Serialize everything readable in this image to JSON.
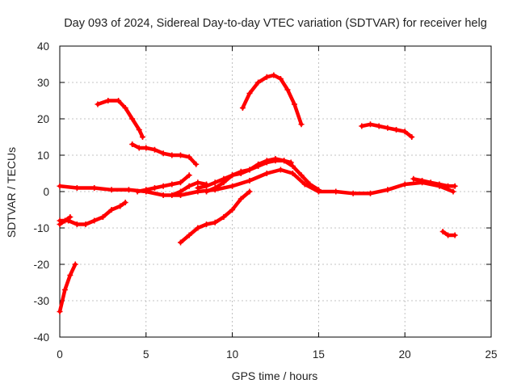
{
  "chart_data": {
    "type": "line",
    "title": "Day 093 of 2024, Sidereal Day-to-day VTEC variation (SDTVAR) for receiver helg",
    "xlabel": "GPS time / hours",
    "ylabel": "SDTVAR / TECUs",
    "xlim": [
      0,
      25
    ],
    "ylim": [
      -40,
      40
    ],
    "xticks": [
      0,
      5,
      10,
      15,
      20,
      25
    ],
    "yticks": [
      -40,
      -30,
      -20,
      -10,
      0,
      10,
      20,
      30,
      40
    ],
    "grid": true,
    "legend": "none",
    "color": "#ff0000",
    "series": [
      {
        "name": "arc-1",
        "x": [
          0.0,
          0.3,
          0.6,
          0.9
        ],
        "y": [
          -33,
          -27,
          -23,
          -20
        ]
      },
      {
        "name": "arc-2",
        "x": [
          0.0,
          0.5,
          1.0,
          1.5,
          2.0,
          2.5,
          3.0,
          3.5,
          3.8
        ],
        "y": [
          -8,
          -8,
          -9,
          -9,
          -8,
          -7,
          -5,
          -4,
          -3
        ]
      },
      {
        "name": "arc-3",
        "x": [
          0.0,
          0.3,
          0.6
        ],
        "y": [
          -9,
          -8,
          -7
        ]
      },
      {
        "name": "arc-4",
        "x": [
          0.0,
          1.0,
          2.0,
          3.0,
          4.0,
          5.0,
          6.0,
          7.0,
          8.0,
          9.0,
          10.0,
          11.0,
          12.0,
          12.8,
          13.5,
          14.2,
          15.0,
          16.0,
          17.0,
          18.0,
          19.0,
          20.0,
          21.0,
          22.0,
          22.8
        ],
        "y": [
          1.5,
          1.0,
          1.0,
          0.5,
          0.5,
          0,
          -1,
          -1,
          0,
          0.5,
          1.5,
          3,
          5,
          6,
          5,
          2,
          0,
          0,
          -0.5,
          -0.5,
          0.5,
          2,
          2.5,
          1.5,
          0
        ]
      },
      {
        "name": "arc-5",
        "x": [
          2.2,
          2.8,
          3.4,
          3.8,
          4.2,
          4.6,
          4.8
        ],
        "y": [
          24,
          25,
          25,
          23,
          20,
          17,
          15
        ]
      },
      {
        "name": "arc-6",
        "x": [
          4.2,
          4.6,
          5.0,
          5.5,
          6.0,
          6.5,
          7.0,
          7.5,
          7.9
        ],
        "y": [
          13,
          12,
          12,
          11.5,
          10.5,
          10,
          10,
          9.5,
          7.5
        ]
      },
      {
        "name": "arc-7",
        "x": [
          4.5,
          5.0,
          5.5,
          6.0,
          6.5,
          7.0,
          7.5
        ],
        "y": [
          0,
          0.5,
          1,
          1.5,
          2,
          2.5,
          4.5
        ]
      },
      {
        "name": "arc-8",
        "x": [
          7.0,
          7.5,
          8.0,
          8.5,
          9.0,
          9.5,
          10.0,
          10.5,
          11.0
        ],
        "y": [
          -14,
          -12,
          -10,
          -9,
          -8.5,
          -7,
          -5,
          -2,
          0
        ]
      },
      {
        "name": "arc-9",
        "x": [
          6.5,
          7.0,
          7.5,
          8.0,
          8.5
        ],
        "y": [
          -1,
          0,
          1.5,
          2.5,
          2
        ]
      },
      {
        "name": "arc-10",
        "x": [
          8.0,
          8.5,
          9.0,
          9.5,
          10.0,
          10.5,
          11.0,
          11.5,
          12.0,
          12.5,
          13.0,
          13.5,
          14.0,
          14.5,
          15.0
        ],
        "y": [
          1,
          1.5,
          2.5,
          3.5,
          4.5,
          5,
          6,
          7.5,
          8.5,
          9,
          8.5,
          7,
          4.5,
          2,
          0.5
        ]
      },
      {
        "name": "arc-11",
        "x": [
          8.5,
          9.0,
          9.5,
          10.0,
          10.5,
          11.0,
          11.5,
          12.0,
          12.5,
          13.0,
          13.4
        ],
        "y": [
          0,
          1,
          2.5,
          4.5,
          5.5,
          6,
          7,
          8,
          8.5,
          8.5,
          8
        ]
      },
      {
        "name": "arc-12",
        "x": [
          10.6,
          11.0,
          11.5,
          12.0,
          12.4,
          12.8,
          13.2,
          13.6,
          14.0
        ],
        "y": [
          23,
          27,
          30,
          31.5,
          32,
          31,
          28,
          24,
          18.5
        ]
      },
      {
        "name": "arc-13",
        "x": [
          17.5,
          18.0,
          18.5,
          19.0,
          19.5,
          20.0,
          20.4
        ],
        "y": [
          18,
          18.5,
          18,
          17.5,
          17,
          16.5,
          15
        ]
      },
      {
        "name": "arc-14",
        "x": [
          20.5,
          21.0,
          21.5,
          22.0,
          22.5,
          22.9
        ],
        "y": [
          3.5,
          3,
          2.5,
          2,
          1.5,
          1.5
        ]
      },
      {
        "name": "arc-15",
        "x": [
          22.2,
          22.5,
          22.9
        ],
        "y": [
          -11,
          -12,
          -12
        ]
      }
    ]
  }
}
